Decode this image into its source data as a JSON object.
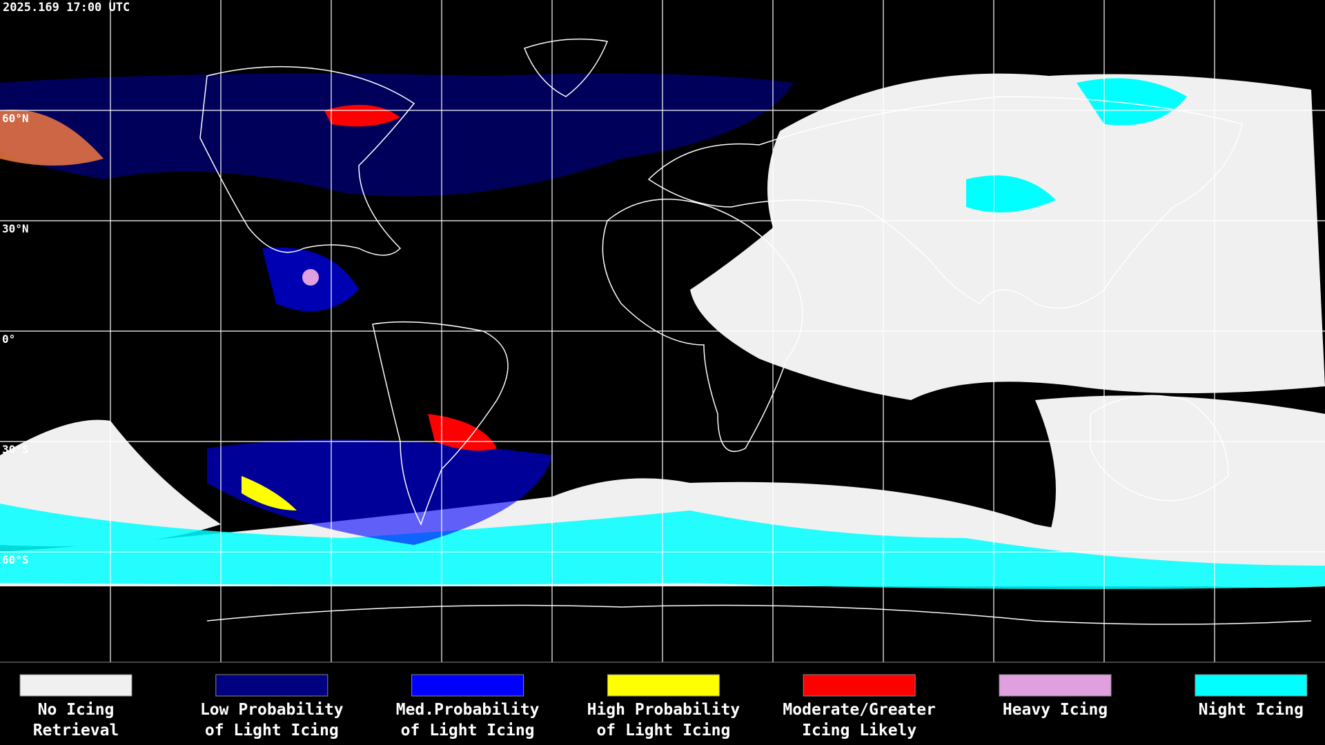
{
  "header": {
    "timestamp": "2025.169 17:00 UTC"
  },
  "latitude_labels": [
    "60°N",
    "30°N",
    "0°",
    "30°S",
    "60°S"
  ],
  "legend": [
    {
      "label_lines": [
        "No Icing",
        "Retrieval"
      ],
      "color": "#f0f0f0"
    },
    {
      "label_lines": [
        "Low Probability",
        "of Light Icing"
      ],
      "color": "#000080"
    },
    {
      "label_lines": [
        "Med.Probability",
        "of Light Icing"
      ],
      "color": "#0000ff"
    },
    {
      "label_lines": [
        "High Probability",
        "of Light Icing"
      ],
      "color": "#ffff00"
    },
    {
      "label_lines": [
        "Moderate/Greater",
        "Icing Likely"
      ],
      "color": "#ff0000"
    },
    {
      "label_lines": [
        "Heavy Icing"
      ],
      "color": "#e0a0e0"
    },
    {
      "label_lines": [
        "Night Icing"
      ],
      "color": "#00ffff"
    }
  ]
}
